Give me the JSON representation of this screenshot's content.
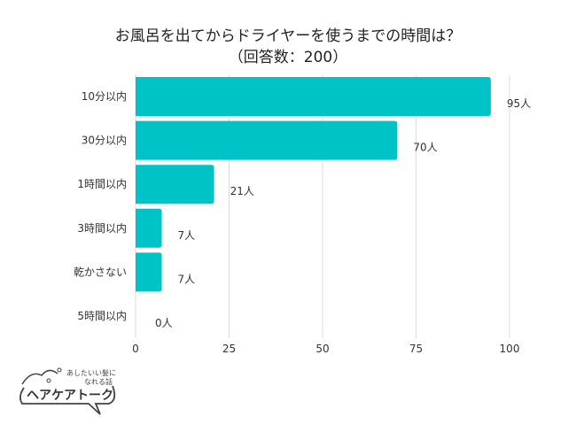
{
  "chart_data": {
    "type": "bar",
    "orientation": "horizontal",
    "title": "お風呂を出てからドライヤーを使うまでの時間は？",
    "subtitle": "（回答数：200）",
    "categories": [
      "10分以内",
      "30分以内",
      "1時間以内",
      "3時間以内",
      "乾かさない",
      "5時間以内"
    ],
    "values": [
      95,
      70,
      21,
      7,
      7,
      0
    ],
    "value_labels": [
      "95人",
      "70人",
      "21人",
      "7人",
      "7人",
      "0人"
    ],
    "xlim": [
      0,
      100
    ],
    "xticks": [
      0,
      25,
      50,
      75,
      100
    ],
    "xtick_labels": [
      "0",
      "25",
      "50",
      "75",
      "100"
    ],
    "grid": true,
    "bar_color": "#00c3c8"
  },
  "logo": {
    "tagline": "あしたいい髪になれる話",
    "name": "ヘアケアトーク"
  }
}
